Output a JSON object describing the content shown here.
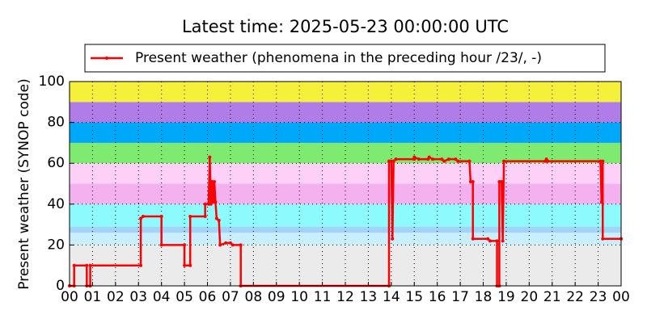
{
  "chart_data": {
    "type": "line",
    "title": "Latest time: 2025-05-23 00:00:00 UTC",
    "y_label": "Present weather (SYNOP code)",
    "x": [
      0,
      0.2,
      0.2,
      0.75,
      0.75,
      0.9,
      0.9,
      3.1,
      3.1,
      3.2,
      4.0,
      4.0,
      5.0,
      5.0,
      5.25,
      5.25,
      5.9,
      5.9,
      6.05,
      6.1,
      6.15,
      6.2,
      6.25,
      6.3,
      6.35,
      6.4,
      6.5,
      6.55,
      6.8,
      7.0,
      7.1,
      7.45,
      7.45,
      13.9,
      13.9,
      14.0,
      14.05,
      14.1,
      14.2,
      15.0,
      15.0,
      15.2,
      15.6,
      15.65,
      15.8,
      16.2,
      16.3,
      16.5,
      16.8,
      16.9,
      17.4,
      17.45,
      17.55,
      17.55,
      18.2,
      18.3,
      18.6,
      18.6,
      18.7,
      18.7,
      18.8,
      18.85,
      18.9,
      20.7,
      20.75,
      20.8,
      23.1,
      23.15,
      23.2,
      23.2,
      24
    ],
    "series": [
      {
        "name": "Present weather (phenomena in the preceding hour /23/, -)",
        "color": "#ff0000",
        "values": [
          0,
          0,
          10,
          10,
          0,
          0,
          10,
          10,
          33,
          34,
          34,
          20,
          20,
          10,
          10,
          34,
          34,
          40,
          40,
          63,
          40,
          51,
          41,
          51,
          41,
          33,
          32,
          20,
          21,
          21,
          20,
          20,
          0,
          0,
          61,
          61,
          23,
          61,
          62,
          62,
          63,
          62,
          62,
          63,
          62,
          62,
          61,
          62,
          62,
          61,
          61,
          51,
          51,
          23,
          23,
          22,
          22,
          0,
          0,
          51,
          51,
          22,
          61,
          61,
          62,
          61,
          61,
          41,
          61,
          23,
          23
        ]
      }
    ],
    "xlim": [
      0,
      24
    ],
    "xticks": [
      {
        "value": 0,
        "label": "00"
      },
      {
        "value": 1,
        "label": "01"
      },
      {
        "value": 2,
        "label": "02"
      },
      {
        "value": 3,
        "label": "03"
      },
      {
        "value": 4,
        "label": "04"
      },
      {
        "value": 5,
        "label": "05"
      },
      {
        "value": 6,
        "label": "06"
      },
      {
        "value": 7,
        "label": "07"
      },
      {
        "value": 8,
        "label": "08"
      },
      {
        "value": 9,
        "label": "09"
      },
      {
        "value": 10,
        "label": "10"
      },
      {
        "value": 11,
        "label": "11"
      },
      {
        "value": 12,
        "label": "12"
      },
      {
        "value": 13,
        "label": "13"
      },
      {
        "value": 14,
        "label": "14"
      },
      {
        "value": 15,
        "label": "15"
      },
      {
        "value": 16,
        "label": "16"
      },
      {
        "value": 17,
        "label": "17"
      },
      {
        "value": 18,
        "label": "18"
      },
      {
        "value": 19,
        "label": "19"
      },
      {
        "value": 20,
        "label": "20"
      },
      {
        "value": 21,
        "label": "21"
      },
      {
        "value": 22,
        "label": "22"
      },
      {
        "value": 23,
        "label": "23"
      },
      {
        "value": 24,
        "label": "00"
      }
    ],
    "ylim": [
      0,
      100
    ],
    "yticks": [
      0,
      20,
      40,
      60,
      80,
      100
    ],
    "grid": true,
    "legend": "top",
    "bands": [
      {
        "from": 0,
        "to": 20,
        "color": "#ebebeb"
      },
      {
        "from": 20,
        "to": 26,
        "color": "#c9eefe"
      },
      {
        "from": 26,
        "to": 29,
        "color": "#a3d3f8"
      },
      {
        "from": 29,
        "to": 40,
        "color": "#8dfbfd"
      },
      {
        "from": 40,
        "to": 50,
        "color": "#f3b2ef"
      },
      {
        "from": 50,
        "to": 60,
        "color": "#fdd1f7"
      },
      {
        "from": 60,
        "to": 70,
        "color": "#7fea70"
      },
      {
        "from": 70,
        "to": 80,
        "color": "#00a8fa"
      },
      {
        "from": 80,
        "to": 90,
        "color": "#b07ce8"
      },
      {
        "from": 90,
        "to": 100,
        "color": "#f5f03a"
      }
    ]
  }
}
